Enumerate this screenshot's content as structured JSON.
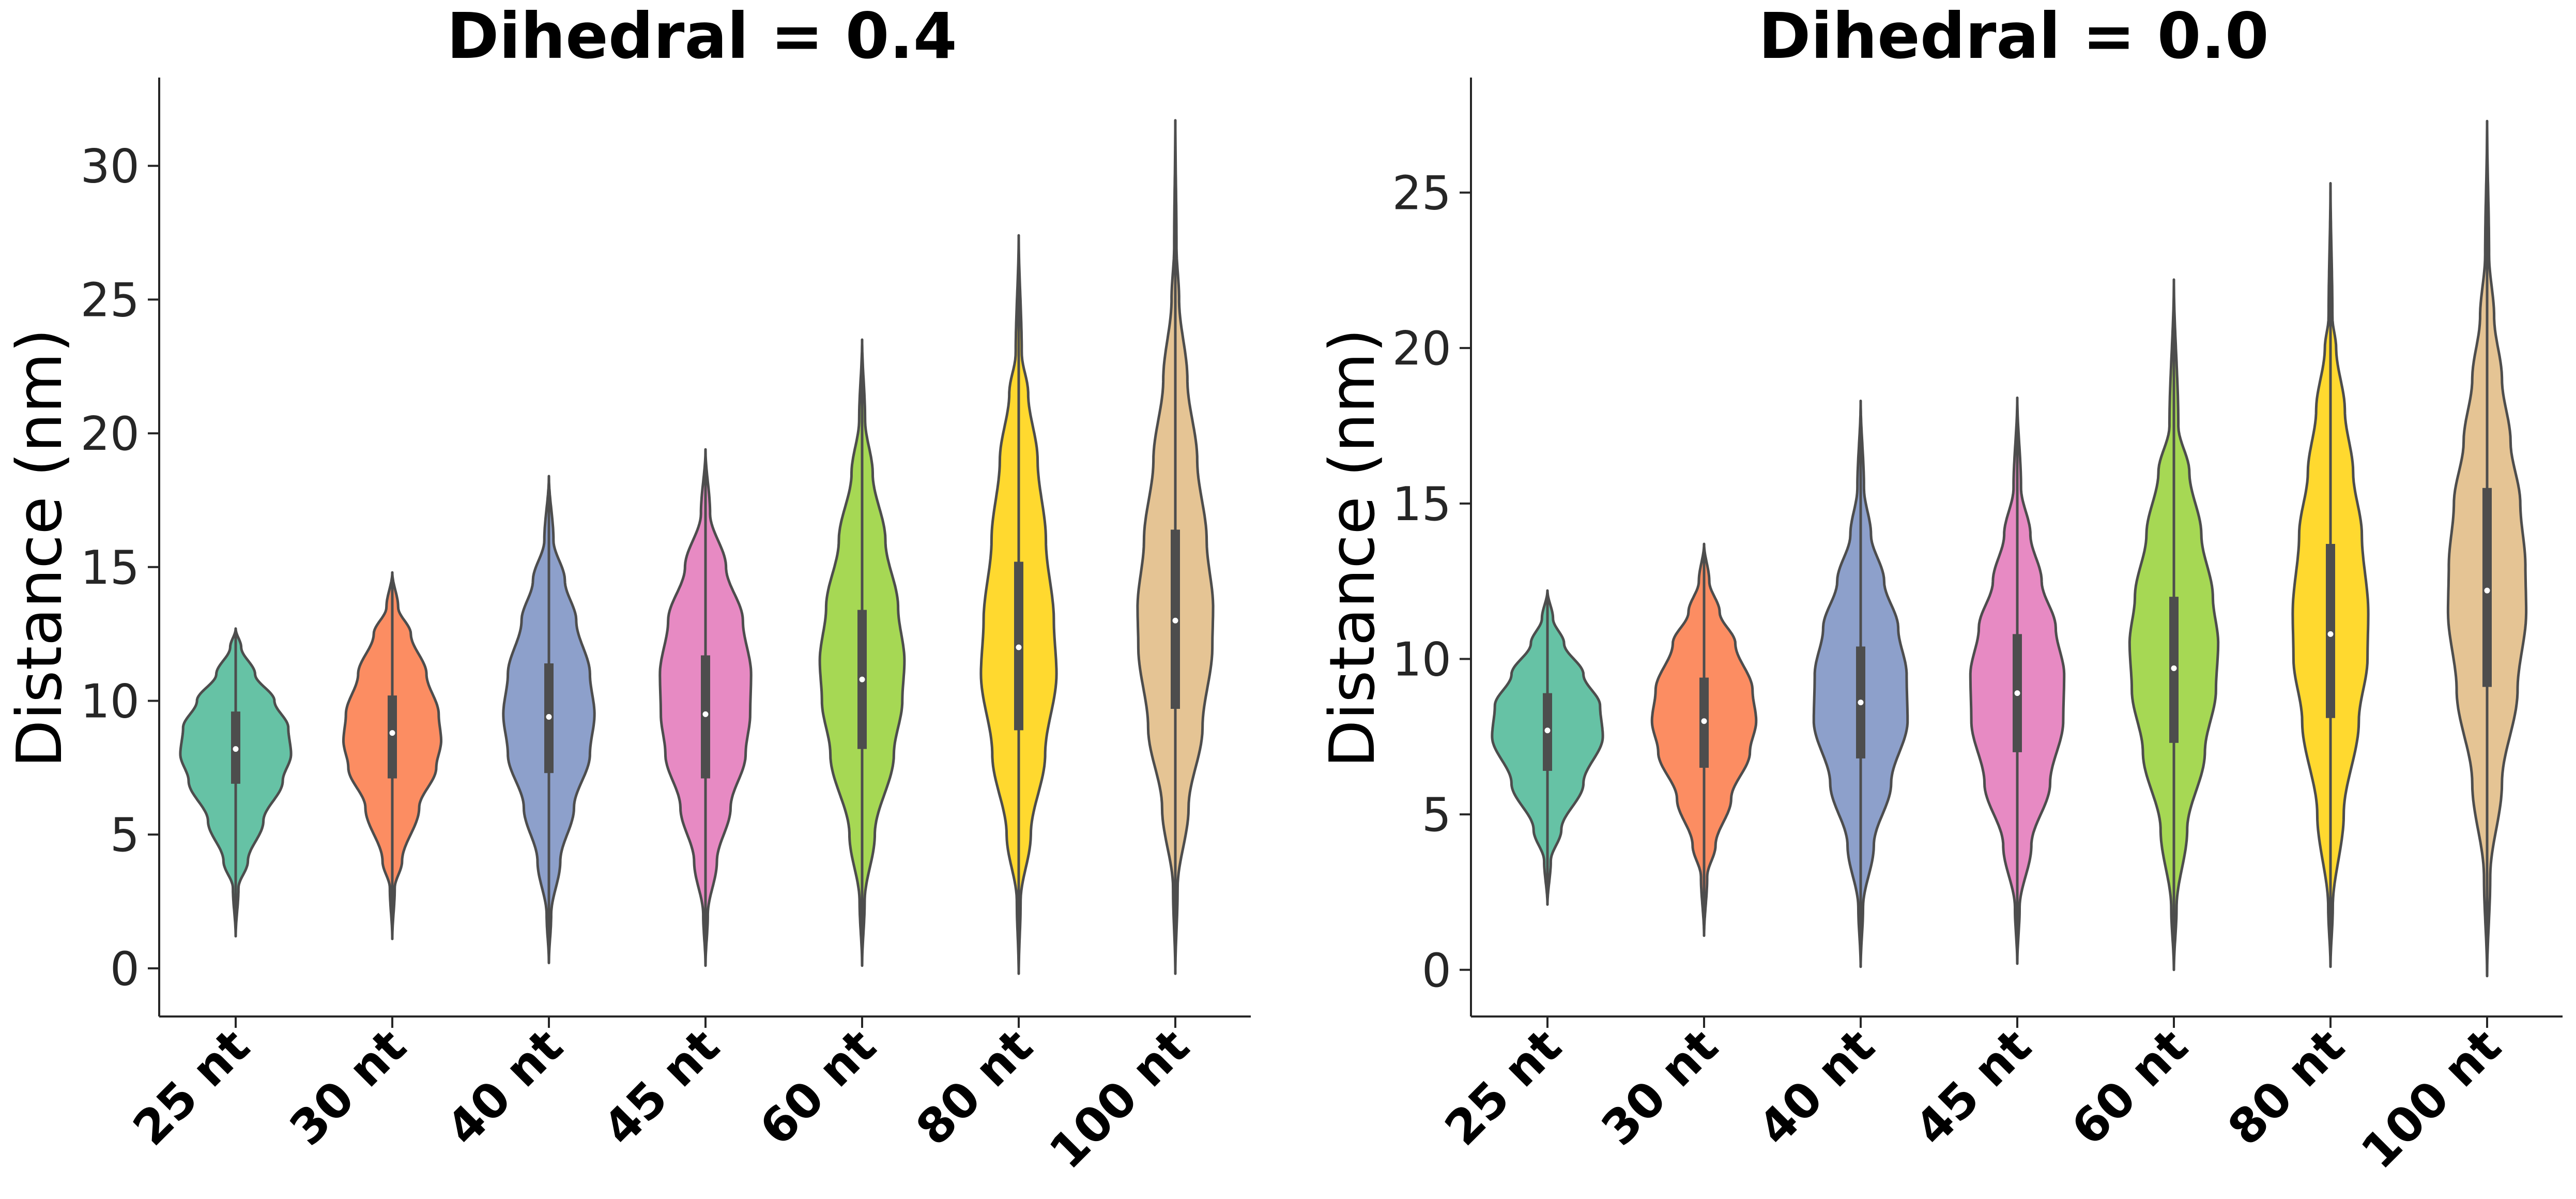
{
  "chart_data": [
    {
      "type": "violin",
      "title": "Dihedral = 0.4",
      "xlabel": "",
      "ylabel": "Distance (nm)",
      "ylim": [
        -1.8,
        33.3
      ],
      "yticks": [
        0,
        5,
        10,
        15,
        20,
        25,
        30
      ],
      "grid": false,
      "categories": [
        "25 nt",
        "30 nt",
        "40 nt",
        "45 nt",
        "60 nt",
        "80 nt",
        "100 nt"
      ],
      "colors": [
        "#66c2a5",
        "#fc8d62",
        "#8da0cb",
        "#e78ac3",
        "#a6d854",
        "#ffd92f",
        "#e5c494"
      ],
      "series": [
        {
          "min": 1.2,
          "q1": 6.9,
          "median": 8.2,
          "q3": 9.6,
          "max": 12.7,
          "width_scale": 0.85,
          "profile": [
            [
              1.2,
              0.0
            ],
            [
              3.0,
              0.05
            ],
            [
              4.0,
              0.22
            ],
            [
              5.5,
              0.5
            ],
            [
              7.0,
              0.85
            ],
            [
              8.0,
              1.0
            ],
            [
              9.0,
              0.95
            ],
            [
              10.0,
              0.7
            ],
            [
              11.0,
              0.35
            ],
            [
              12.0,
              0.1
            ],
            [
              12.7,
              0.0
            ]
          ]
        },
        {
          "min": 1.1,
          "q1": 7.1,
          "median": 8.8,
          "q3": 10.2,
          "max": 14.8,
          "width_scale": 0.75,
          "profile": [
            [
              1.1,
              0.0
            ],
            [
              3.0,
              0.05
            ],
            [
              4.0,
              0.2
            ],
            [
              6.0,
              0.55
            ],
            [
              7.5,
              0.9
            ],
            [
              8.5,
              1.0
            ],
            [
              9.5,
              0.95
            ],
            [
              11.0,
              0.7
            ],
            [
              12.5,
              0.38
            ],
            [
              13.5,
              0.12
            ],
            [
              14.8,
              0.0
            ]
          ]
        },
        {
          "min": 0.2,
          "q1": 7.3,
          "median": 9.4,
          "q3": 11.4,
          "max": 18.4,
          "width_scale": 0.7,
          "profile": [
            [
              0.2,
              0.0
            ],
            [
              2.0,
              0.05
            ],
            [
              4.0,
              0.25
            ],
            [
              6.0,
              0.55
            ],
            [
              8.0,
              0.9
            ],
            [
              9.5,
              1.0
            ],
            [
              11.0,
              0.9
            ],
            [
              13.0,
              0.6
            ],
            [
              14.5,
              0.35
            ],
            [
              16.0,
              0.1
            ],
            [
              18.4,
              0.0
            ]
          ]
        },
        {
          "min": 0.1,
          "q1": 7.1,
          "median": 9.5,
          "q3": 11.7,
          "max": 19.4,
          "width_scale": 0.7,
          "profile": [
            [
              0.1,
              0.0
            ],
            [
              2.0,
              0.05
            ],
            [
              4.0,
              0.25
            ],
            [
              6.0,
              0.55
            ],
            [
              8.0,
              0.88
            ],
            [
              9.5,
              0.98
            ],
            [
              11.0,
              1.0
            ],
            [
              13.0,
              0.82
            ],
            [
              15.0,
              0.45
            ],
            [
              17.0,
              0.1
            ],
            [
              19.4,
              0.0
            ]
          ]
        },
        {
          "min": 0.1,
          "q1": 8.2,
          "median": 10.8,
          "q3": 13.4,
          "max": 23.5,
          "width_scale": 0.65,
          "profile": [
            [
              0.1,
              0.0
            ],
            [
              2.5,
              0.06
            ],
            [
              5.0,
              0.3
            ],
            [
              8.0,
              0.75
            ],
            [
              10.0,
              0.95
            ],
            [
              11.5,
              1.0
            ],
            [
              13.5,
              0.85
            ],
            [
              16.0,
              0.55
            ],
            [
              18.5,
              0.25
            ],
            [
              20.5,
              0.07
            ],
            [
              23.5,
              0.0
            ]
          ]
        },
        {
          "min": -0.2,
          "q1": 8.9,
          "median": 12.0,
          "q3": 15.2,
          "max": 27.4,
          "width_scale": 0.58,
          "profile": [
            [
              -0.2,
              0.0
            ],
            [
              2.5,
              0.05
            ],
            [
              5.0,
              0.32
            ],
            [
              8.0,
              0.7
            ],
            [
              11.0,
              1.0
            ],
            [
              13.0,
              0.93
            ],
            [
              16.0,
              0.72
            ],
            [
              19.0,
              0.5
            ],
            [
              21.5,
              0.25
            ],
            [
              23.0,
              0.08
            ],
            [
              27.4,
              0.0
            ]
          ]
        },
        {
          "min": -0.2,
          "q1": 9.7,
          "median": 13.0,
          "q3": 16.4,
          "max": 31.7,
          "width_scale": 0.58,
          "profile": [
            [
              -0.2,
              0.0
            ],
            [
              3.0,
              0.06
            ],
            [
              6.0,
              0.35
            ],
            [
              9.0,
              0.72
            ],
            [
              12.0,
              0.98
            ],
            [
              13.5,
              1.0
            ],
            [
              16.0,
              0.83
            ],
            [
              19.0,
              0.58
            ],
            [
              22.0,
              0.32
            ],
            [
              25.0,
              0.1
            ],
            [
              27.0,
              0.03
            ],
            [
              31.7,
              0.0
            ]
          ]
        }
      ]
    },
    {
      "type": "violin",
      "title": "Dihedral = 0.0",
      "xlabel": "",
      "ylabel": "Distance (nm)",
      "ylim": [
        -1.5,
        28.7
      ],
      "yticks": [
        0,
        5,
        10,
        15,
        20,
        25
      ],
      "grid": false,
      "categories": [
        "25 nt",
        "30 nt",
        "40 nt",
        "45 nt",
        "60 nt",
        "80 nt",
        "100 nt"
      ],
      "colors": [
        "#66c2a5",
        "#fc8d62",
        "#8da0cb",
        "#e78ac3",
        "#a6d854",
        "#ffd92f",
        "#e5c494"
      ],
      "series": [
        {
          "min": 2.1,
          "q1": 6.4,
          "median": 7.7,
          "q3": 8.9,
          "max": 12.2,
          "width_scale": 0.85,
          "profile": [
            [
              2.1,
              0.0
            ],
            [
              3.5,
              0.06
            ],
            [
              4.5,
              0.25
            ],
            [
              6.0,
              0.65
            ],
            [
              7.5,
              1.0
            ],
            [
              8.5,
              0.95
            ],
            [
              9.5,
              0.65
            ],
            [
              10.5,
              0.3
            ],
            [
              11.3,
              0.1
            ],
            [
              12.2,
              0.0
            ]
          ]
        },
        {
          "min": 1.1,
          "q1": 6.5,
          "median": 8.0,
          "q3": 9.4,
          "max": 13.7,
          "width_scale": 0.8,
          "profile": [
            [
              1.1,
              0.0
            ],
            [
              3.0,
              0.06
            ],
            [
              4.0,
              0.22
            ],
            [
              5.5,
              0.52
            ],
            [
              7.0,
              0.88
            ],
            [
              8.0,
              1.0
            ],
            [
              9.0,
              0.93
            ],
            [
              10.5,
              0.6
            ],
            [
              11.5,
              0.3
            ],
            [
              12.5,
              0.1
            ],
            [
              13.7,
              0.0
            ]
          ]
        },
        {
          "min": 0.1,
          "q1": 6.8,
          "median": 8.6,
          "q3": 10.4,
          "max": 18.3,
          "width_scale": 0.72,
          "profile": [
            [
              0.1,
              0.0
            ],
            [
              2.0,
              0.05
            ],
            [
              4.0,
              0.28
            ],
            [
              6.0,
              0.65
            ],
            [
              8.0,
              1.0
            ],
            [
              9.5,
              0.98
            ],
            [
              11.0,
              0.8
            ],
            [
              12.5,
              0.5
            ],
            [
              14.0,
              0.22
            ],
            [
              15.5,
              0.07
            ],
            [
              18.3,
              0.0
            ]
          ]
        },
        {
          "min": 0.2,
          "q1": 7.0,
          "median": 8.9,
          "q3": 10.8,
          "max": 18.4,
          "width_scale": 0.72,
          "profile": [
            [
              0.2,
              0.0
            ],
            [
              2.0,
              0.05
            ],
            [
              4.0,
              0.3
            ],
            [
              6.0,
              0.7
            ],
            [
              8.0,
              0.98
            ],
            [
              9.5,
              1.0
            ],
            [
              11.0,
              0.82
            ],
            [
              12.5,
              0.52
            ],
            [
              14.0,
              0.28
            ],
            [
              15.5,
              0.08
            ],
            [
              18.4,
              0.0
            ]
          ]
        },
        {
          "min": 0.0,
          "q1": 7.3,
          "median": 9.7,
          "q3": 12.0,
          "max": 22.2,
          "width_scale": 0.68,
          "profile": [
            [
              0.0,
              0.0
            ],
            [
              2.0,
              0.06
            ],
            [
              4.5,
              0.3
            ],
            [
              7.0,
              0.7
            ],
            [
              9.0,
              0.95
            ],
            [
              10.5,
              1.0
            ],
            [
              12.0,
              0.88
            ],
            [
              14.0,
              0.62
            ],
            [
              16.0,
              0.35
            ],
            [
              17.5,
              0.1
            ],
            [
              22.2,
              0.0
            ]
          ]
        },
        {
          "min": 0.1,
          "q1": 8.1,
          "median": 10.8,
          "q3": 13.7,
          "max": 25.3,
          "width_scale": 0.58,
          "profile": [
            [
              0.1,
              0.0
            ],
            [
              2.0,
              0.06
            ],
            [
              5.0,
              0.35
            ],
            [
              8.0,
              0.75
            ],
            [
              10.0,
              0.98
            ],
            [
              11.5,
              1.0
            ],
            [
              14.0,
              0.83
            ],
            [
              16.0,
              0.6
            ],
            [
              18.0,
              0.38
            ],
            [
              20.0,
              0.15
            ],
            [
              21.0,
              0.05
            ],
            [
              25.3,
              0.0
            ]
          ]
        },
        {
          "min": -0.2,
          "q1": 9.1,
          "median": 12.2,
          "q3": 15.5,
          "max": 27.3,
          "width_scale": 0.6,
          "profile": [
            [
              -0.2,
              0.0
            ],
            [
              3.0,
              0.08
            ],
            [
              6.0,
              0.38
            ],
            [
              9.0,
              0.78
            ],
            [
              11.5,
              1.0
            ],
            [
              13.0,
              0.98
            ],
            [
              15.0,
              0.85
            ],
            [
              17.0,
              0.6
            ],
            [
              19.0,
              0.38
            ],
            [
              21.0,
              0.18
            ],
            [
              23.0,
              0.05
            ],
            [
              27.3,
              0.0
            ]
          ]
        }
      ]
    }
  ]
}
